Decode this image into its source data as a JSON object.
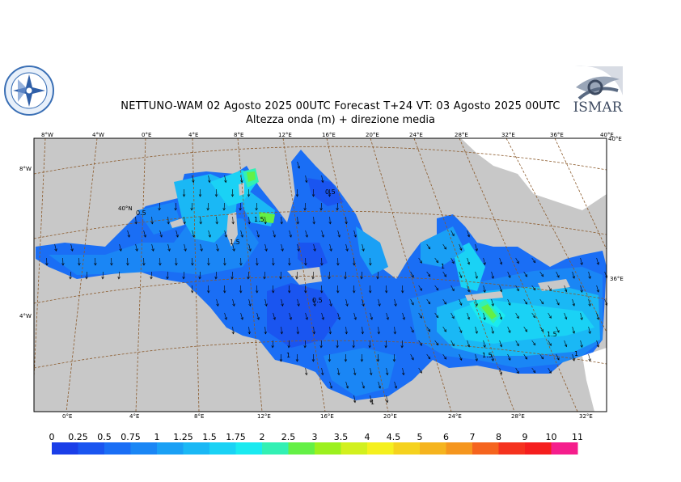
{
  "title": {
    "line1": "NETTUNO-WAM  02   Agosto  2025 00UTC Forecast T+24 VT: 03   Agosto  2025 00UTC",
    "line2": "Altezza onda (m) + direzione media"
  },
  "logos": {
    "left": "wave-rose-logo",
    "right_text": "ISMAR"
  },
  "map": {
    "top_ticks": [
      "8°W",
      "4°W",
      "0°E",
      "4°E",
      "8°E",
      "12°E",
      "16°E",
      "20°E",
      "24°E",
      "28°E",
      "32°E",
      "36°E",
      "40°E"
    ],
    "bottom_ticks": [
      "0°E",
      "4°E",
      "8°E",
      "12°E",
      "16°E",
      "20°E",
      "24°E",
      "28°E",
      "32°E"
    ],
    "left_ticks": [
      "8°W",
      "4°W"
    ],
    "right_ticks": [
      "40°E",
      "36°E"
    ],
    "inner_label": "40°N",
    "contour_labels": [
      "0.5",
      "1.5",
      "0.5",
      "1.5",
      "0.5",
      "1",
      "1",
      "1.5",
      "1.5",
      "1",
      "1"
    ],
    "colors": {
      "land": "#c8c8c8",
      "graticule": "#8b5a2b",
      "arrow": "#000000"
    }
  },
  "legend": {
    "labels": [
      "0",
      "0.25",
      "0.5",
      "0.75",
      "1",
      "1.25",
      "1.5",
      "1.75",
      "2",
      "2.5",
      "3",
      "3.5",
      "4",
      "4.5",
      "5",
      "6",
      "7",
      "8",
      "9",
      "10",
      "11"
    ],
    "colors": [
      "#1a3ee8",
      "#1a55f0",
      "#1a6ef5",
      "#1a86f5",
      "#1aa0f5",
      "#1ab8f5",
      "#1ad2f5",
      "#1aeaf0",
      "#32f0b4",
      "#64f046",
      "#9cf01e",
      "#d2f01e",
      "#f5f01e",
      "#f5d21e",
      "#f5b41e",
      "#f5961e",
      "#f5641e",
      "#f5321e",
      "#f51e1e",
      "#f51e8c",
      "#f51ed2"
    ]
  }
}
